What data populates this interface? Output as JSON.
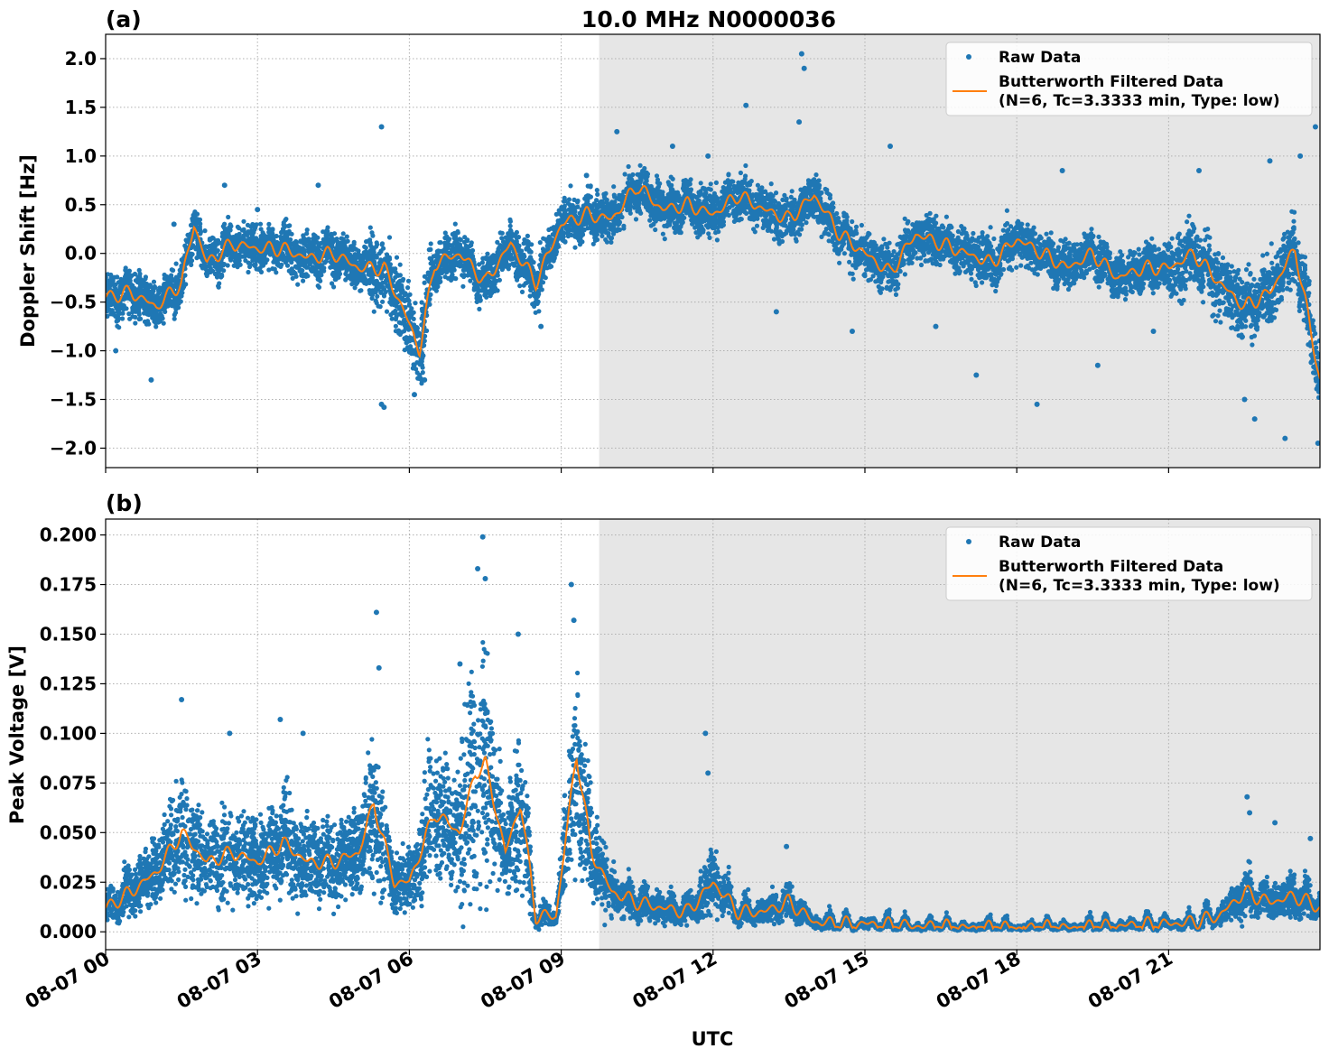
{
  "figure": {
    "suptitle": "10.0 MHz N0000036",
    "xlabel": "UTC",
    "x_ticks": [
      "08-07 00",
      "08-07 03",
      "08-07 06",
      "08-07 09",
      "08-07 12",
      "08-07 15",
      "08-07 18",
      "08-07 21"
    ],
    "x_range": [
      "08-07 00:00",
      "08-07 23:59"
    ],
    "shaded_region": {
      "start": "08-07 09:45",
      "end": "08-07 23:59",
      "color": "#e6e6e6"
    },
    "legend": {
      "placement": "top-right",
      "raw_label": "Raw Data",
      "filtered_label_line1": "Butterworth Filtered Data",
      "filtered_label_line2": "(N=6, Tc=3.3333 min, Type: low)"
    },
    "colors": {
      "raw": "#1f77b4",
      "filtered": "#ff7f0e"
    }
  },
  "chart_data": [
    {
      "type": "scatter",
      "panel_label": "(a)",
      "ylabel": "Doppler Shift [Hz]",
      "ylim": [
        -2.2,
        2.25
      ],
      "yticks": [
        "2.0",
        "1.5",
        "1.0",
        "0.5",
        "0.0",
        "−0.5",
        "−1.0",
        "−1.5",
        "−2.0"
      ],
      "grid": true,
      "series": [
        {
          "name": "Butterworth Filtered Data (N=6, Tc=3.3333 min, Type: low)",
          "x_hours": [
            0,
            0.5,
            1,
            1.5,
            1.75,
            2,
            2.5,
            3,
            3.5,
            4,
            4.5,
            5,
            5.5,
            5.9,
            6.2,
            6.5,
            7,
            7.5,
            8,
            8.5,
            9,
            9.5,
            10,
            10.5,
            11,
            11.5,
            12,
            12.5,
            13,
            13.5,
            14,
            14.5,
            15,
            15.5,
            16,
            16.5,
            17,
            17.5,
            18,
            18.5,
            19,
            19.5,
            20,
            20.5,
            21,
            21.5,
            22,
            22.5,
            23,
            23.5,
            23.99
          ],
          "y": [
            -0.45,
            -0.4,
            -0.55,
            -0.3,
            0.3,
            -0.1,
            0.1,
            0.05,
            0.05,
            -0.05,
            0.0,
            -0.15,
            -0.15,
            -0.6,
            -1.0,
            -0.1,
            0.0,
            -0.3,
            0.1,
            -0.3,
            0.3,
            0.4,
            0.35,
            0.7,
            0.45,
            0.5,
            0.4,
            0.6,
            0.45,
            0.35,
            0.6,
            0.2,
            0.0,
            -0.2,
            0.2,
            0.1,
            0.0,
            -0.1,
            0.15,
            0.0,
            -0.15,
            0.0,
            -0.25,
            -0.15,
            -0.15,
            0.0,
            -0.3,
            -0.55,
            -0.4,
            0.05,
            -1.3
          ]
        },
        {
          "name": "Raw Data",
          "x_hours": [
            0.2,
            0.9,
            1.35,
            2.35,
            3.0,
            4.2,
            5.45,
            5.5,
            5.45,
            6.1,
            6.3,
            8.6,
            9.5,
            10.1,
            11.2,
            11.9,
            12.65,
            13.25,
            13.7,
            13.75,
            13.8,
            14.75,
            15.5,
            16.4,
            17.2,
            18.4,
            18.9,
            19.6,
            20.7,
            21.6,
            22.5,
            22.7,
            23.0,
            23.3,
            23.6,
            23.9,
            23.95
          ],
          "y": [
            -1.0,
            -1.3,
            0.3,
            0.7,
            0.45,
            0.7,
            1.3,
            -1.58,
            -1.55,
            -1.45,
            -1.3,
            -0.75,
            0.8,
            1.25,
            1.1,
            1.0,
            1.52,
            -0.6,
            1.35,
            2.05,
            1.9,
            -0.8,
            1.1,
            -0.75,
            -1.25,
            -1.55,
            0.85,
            -1.15,
            -0.8,
            0.85,
            -1.5,
            -1.7,
            0.95,
            -1.9,
            1.0,
            1.3,
            -1.95
          ]
        }
      ]
    },
    {
      "type": "scatter",
      "panel_label": "(b)",
      "ylabel": "Peak Voltage [V]",
      "ylim": [
        -0.009,
        0.208
      ],
      "yticks": [
        "0.200",
        "0.175",
        "0.150",
        "0.125",
        "0.100",
        "0.075",
        "0.050",
        "0.025",
        "0.000"
      ],
      "grid": true,
      "series": [
        {
          "name": "Butterworth Filtered Data (N=6, Tc=3.3333 min, Type: low)",
          "x_hours": [
            0,
            0.5,
            1,
            1.5,
            2,
            2.5,
            3,
            3.5,
            4,
            4.5,
            5,
            5.3,
            5.7,
            6.0,
            6.5,
            7.0,
            7.3,
            7.5,
            7.9,
            8.2,
            8.5,
            8.9,
            9.3,
            9.6,
            10.0,
            10.5,
            11,
            11.5,
            12,
            12.5,
            13,
            13.5,
            14,
            14.5,
            15,
            16,
            17,
            18,
            19,
            20,
            21,
            21.5,
            22,
            22.5,
            23,
            23.5,
            23.99
          ],
          "y": [
            0.012,
            0.02,
            0.03,
            0.05,
            0.035,
            0.04,
            0.035,
            0.045,
            0.035,
            0.035,
            0.04,
            0.065,
            0.025,
            0.025,
            0.06,
            0.05,
            0.08,
            0.085,
            0.04,
            0.065,
            0.008,
            0.008,
            0.09,
            0.04,
            0.02,
            0.015,
            0.012,
            0.01,
            0.025,
            0.01,
            0.01,
            0.015,
            0.005,
            0.004,
            0.004,
            0.003,
            0.002,
            0.002,
            0.002,
            0.003,
            0.004,
            0.005,
            0.008,
            0.02,
            0.015,
            0.018,
            0.012
          ]
        },
        {
          "name": "Raw Data",
          "x_hours": [
            1.5,
            2.45,
            3.45,
            3.9,
            5.35,
            5.4,
            7.0,
            7.35,
            7.45,
            7.5,
            8.15,
            9.2,
            9.25,
            11.85,
            11.9,
            13.45,
            22.55,
            22.6,
            23.1,
            23.8
          ],
          "y": [
            0.117,
            0.1,
            0.107,
            0.1,
            0.161,
            0.133,
            0.135,
            0.183,
            0.199,
            0.178,
            0.15,
            0.175,
            0.157,
            0.1,
            0.08,
            0.043,
            0.068,
            0.06,
            0.055,
            0.047
          ]
        }
      ]
    }
  ]
}
